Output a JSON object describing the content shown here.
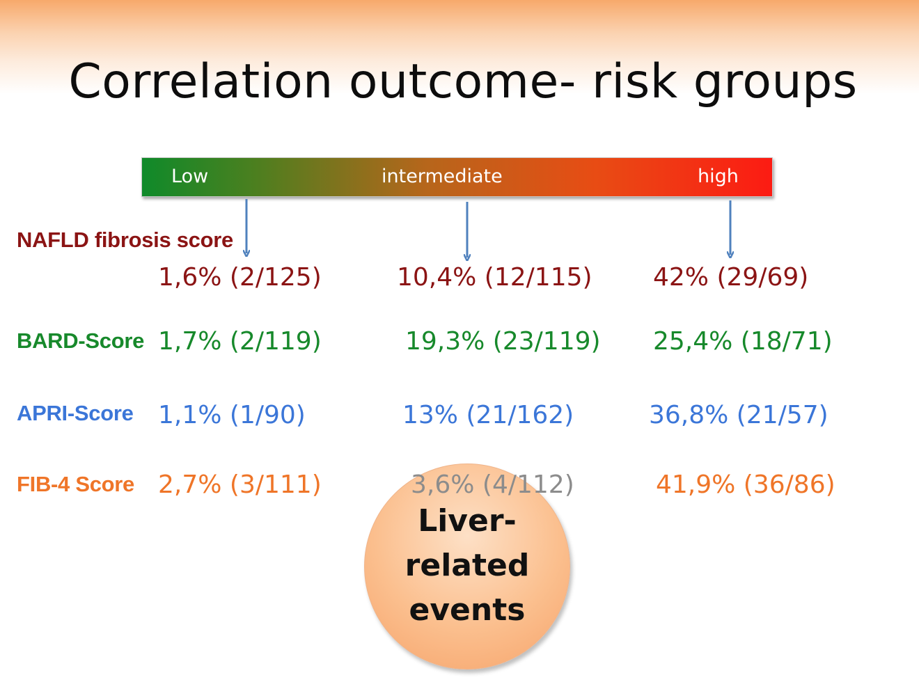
{
  "title": "Correlation outcome- risk groups",
  "risk_bar": {
    "low": "Low",
    "intermediate": "intermediate",
    "high": "high"
  },
  "rows": {
    "nafld": {
      "label": "NAFLD fibrosis score",
      "low": "1,6% (2/125)",
      "intermediate": "10,4% (12/115)",
      "high": "42% (29/69)",
      "color": "#8b1414"
    },
    "bard": {
      "label": "BARD-Score",
      "low": "1,7% (2/119)",
      "intermediate": "19,3% (23/119)",
      "high": "25,4% (18/71)",
      "color": "#17892b"
    },
    "apri": {
      "label": "APRI-Score",
      "low": "1,1% (1/90)",
      "intermediate": "13% (21/162)",
      "high": "36,8% (21/57)",
      "color": "#3b76d8"
    },
    "fib4": {
      "label": "FIB-4 Score",
      "low": "2,7% (3/111)",
      "intermediate": "3,6% (4/112)",
      "high": "41,9% (36/86)",
      "color": "#ef7528"
    }
  },
  "bubble": {
    "line1": "Liver-",
    "line2": "related",
    "line3": "events"
  }
}
